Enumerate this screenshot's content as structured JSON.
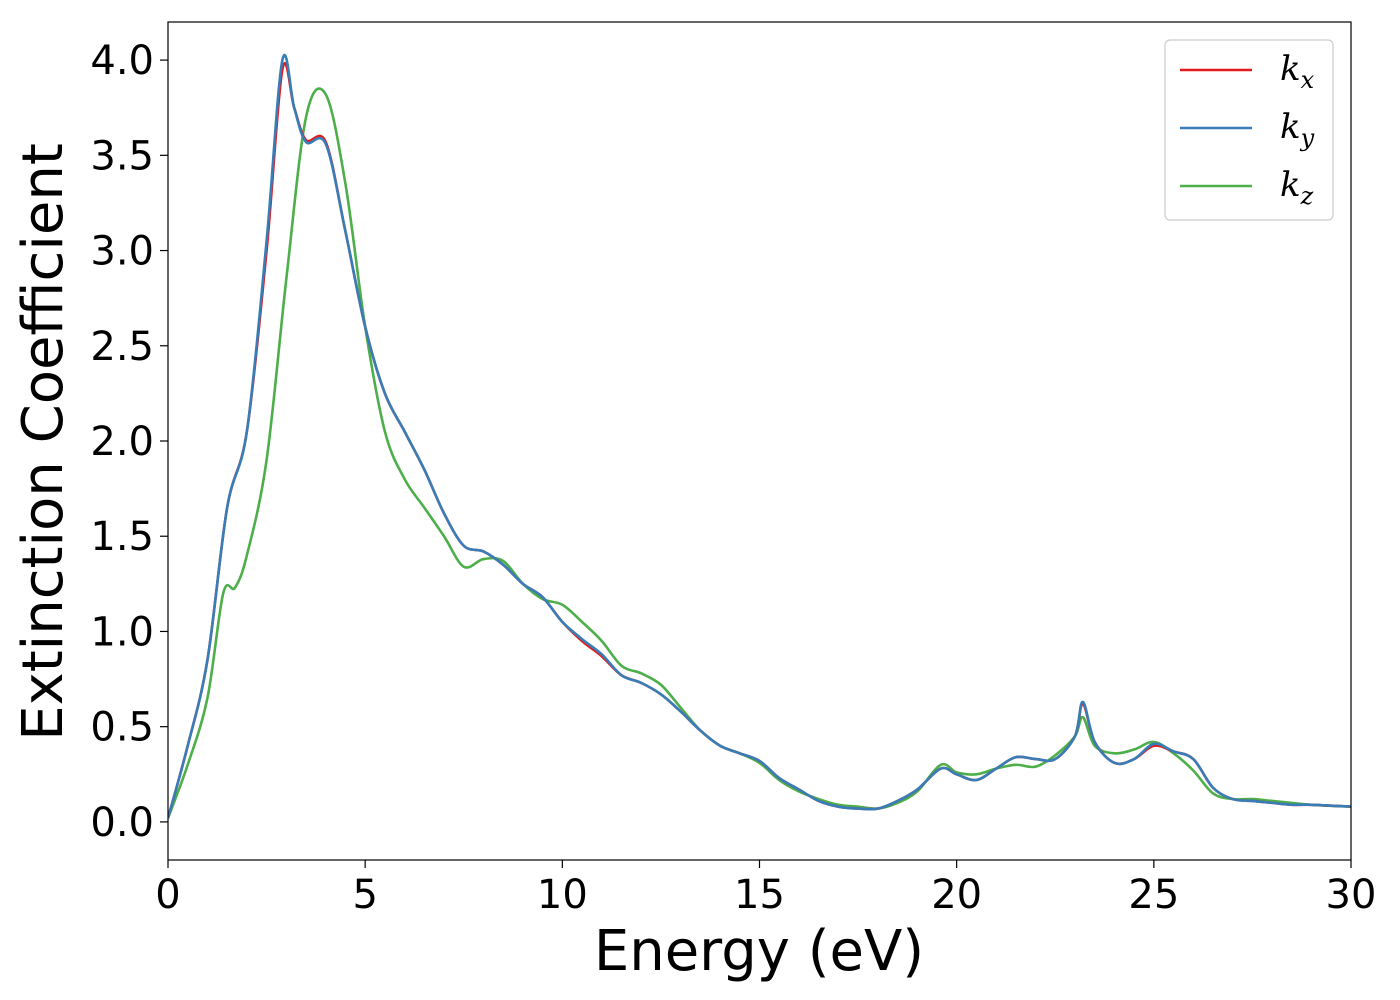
{
  "chart_data": {
    "type": "line",
    "title": "",
    "xlabel": "Energy (eV)",
    "ylabel": "Extinction Coefficient",
    "xlim": [
      0,
      30
    ],
    "ylim": [
      -0.2,
      4.2
    ],
    "xticks": [
      0,
      5,
      10,
      15,
      20,
      25,
      30
    ],
    "xtick_labels": [
      "0",
      "5",
      "10",
      "15",
      "20",
      "25",
      "30"
    ],
    "yticks": [
      0.0,
      0.5,
      1.0,
      1.5,
      2.0,
      2.5,
      3.0,
      3.5,
      4.0
    ],
    "ytick_labels": [
      "0.0",
      "0.5",
      "1.0",
      "1.5",
      "2.0",
      "2.5",
      "3.0",
      "3.5",
      "4.0"
    ],
    "grid": false,
    "legend_position": "top-right",
    "series": [
      {
        "name": "k",
        "subscript": "x",
        "color": "#e41a1c",
        "points": [
          [
            0,
            0.02
          ],
          [
            0.5,
            0.4
          ],
          [
            1,
            0.85
          ],
          [
            1.5,
            1.65
          ],
          [
            2,
            2.05
          ],
          [
            2.5,
            3.0
          ],
          [
            2.9,
            3.95
          ],
          [
            3.2,
            3.75
          ],
          [
            3.5,
            3.58
          ],
          [
            4,
            3.57
          ],
          [
            4.5,
            3.1
          ],
          [
            5,
            2.6
          ],
          [
            5.5,
            2.25
          ],
          [
            6,
            2.05
          ],
          [
            6.5,
            1.85
          ],
          [
            7,
            1.62
          ],
          [
            7.5,
            1.45
          ],
          [
            8,
            1.42
          ],
          [
            8.5,
            1.35
          ],
          [
            9,
            1.25
          ],
          [
            9.5,
            1.18
          ],
          [
            10,
            1.05
          ],
          [
            10.5,
            0.95
          ],
          [
            11,
            0.87
          ],
          [
            11.5,
            0.77
          ],
          [
            12,
            0.73
          ],
          [
            12.5,
            0.67
          ],
          [
            13,
            0.58
          ],
          [
            13.5,
            0.48
          ],
          [
            14,
            0.4
          ],
          [
            14.5,
            0.36
          ],
          [
            15,
            0.32
          ],
          [
            15.5,
            0.23
          ],
          [
            16,
            0.17
          ],
          [
            16.5,
            0.11
          ],
          [
            17,
            0.08
          ],
          [
            17.5,
            0.07
          ],
          [
            18,
            0.07
          ],
          [
            18.5,
            0.11
          ],
          [
            19,
            0.17
          ],
          [
            19.6,
            0.28
          ],
          [
            20,
            0.25
          ],
          [
            20.5,
            0.22
          ],
          [
            21,
            0.28
          ],
          [
            21.5,
            0.34
          ],
          [
            22,
            0.33
          ],
          [
            22.5,
            0.33
          ],
          [
            23,
            0.45
          ],
          [
            23.2,
            0.62
          ],
          [
            23.5,
            0.42
          ],
          [
            24,
            0.31
          ],
          [
            24.5,
            0.33
          ],
          [
            25,
            0.4
          ],
          [
            25.5,
            0.37
          ],
          [
            26,
            0.33
          ],
          [
            26.5,
            0.18
          ],
          [
            27,
            0.12
          ],
          [
            27.5,
            0.11
          ],
          [
            28,
            0.1
          ],
          [
            28.5,
            0.09
          ],
          [
            29,
            0.09
          ],
          [
            30,
            0.08
          ]
        ]
      },
      {
        "name": "k",
        "subscript": "y",
        "color": "#377eb8",
        "points": [
          [
            0,
            0.02
          ],
          [
            0.5,
            0.4
          ],
          [
            1,
            0.85
          ],
          [
            1.5,
            1.65
          ],
          [
            2,
            2.05
          ],
          [
            2.5,
            3.05
          ],
          [
            2.9,
            4.0
          ],
          [
            3.2,
            3.75
          ],
          [
            3.5,
            3.57
          ],
          [
            4,
            3.56
          ],
          [
            4.5,
            3.1
          ],
          [
            5,
            2.6
          ],
          [
            5.5,
            2.25
          ],
          [
            6,
            2.05
          ],
          [
            6.5,
            1.85
          ],
          [
            7,
            1.62
          ],
          [
            7.5,
            1.45
          ],
          [
            8,
            1.42
          ],
          [
            8.5,
            1.35
          ],
          [
            9,
            1.25
          ],
          [
            9.5,
            1.18
          ],
          [
            10,
            1.05
          ],
          [
            10.5,
            0.96
          ],
          [
            11,
            0.88
          ],
          [
            11.5,
            0.77
          ],
          [
            12,
            0.73
          ],
          [
            12.5,
            0.67
          ],
          [
            13,
            0.58
          ],
          [
            13.5,
            0.48
          ],
          [
            14,
            0.4
          ],
          [
            14.5,
            0.36
          ],
          [
            15,
            0.32
          ],
          [
            15.5,
            0.23
          ],
          [
            16,
            0.17
          ],
          [
            16.5,
            0.11
          ],
          [
            17,
            0.08
          ],
          [
            17.5,
            0.07
          ],
          [
            18,
            0.07
          ],
          [
            18.5,
            0.11
          ],
          [
            19,
            0.17
          ],
          [
            19.6,
            0.28
          ],
          [
            20,
            0.25
          ],
          [
            20.5,
            0.22
          ],
          [
            21,
            0.28
          ],
          [
            21.5,
            0.34
          ],
          [
            22,
            0.33
          ],
          [
            22.5,
            0.33
          ],
          [
            23,
            0.45
          ],
          [
            23.2,
            0.63
          ],
          [
            23.5,
            0.42
          ],
          [
            24,
            0.31
          ],
          [
            24.5,
            0.33
          ],
          [
            25,
            0.41
          ],
          [
            25.5,
            0.37
          ],
          [
            26,
            0.33
          ],
          [
            26.5,
            0.18
          ],
          [
            27,
            0.12
          ],
          [
            27.5,
            0.11
          ],
          [
            28,
            0.1
          ],
          [
            28.5,
            0.09
          ],
          [
            29,
            0.09
          ],
          [
            30,
            0.08
          ]
        ]
      },
      {
        "name": "k",
        "subscript": "z",
        "color": "#4daf4a",
        "points": [
          [
            0,
            0.02
          ],
          [
            0.5,
            0.3
          ],
          [
            1,
            0.65
          ],
          [
            1.4,
            1.2
          ],
          [
            1.7,
            1.23
          ],
          [
            2,
            1.4
          ],
          [
            2.5,
            1.9
          ],
          [
            3,
            2.85
          ],
          [
            3.5,
            3.7
          ],
          [
            4,
            3.82
          ],
          [
            4.5,
            3.35
          ],
          [
            5,
            2.6
          ],
          [
            5.5,
            2.05
          ],
          [
            6,
            1.8
          ],
          [
            6.5,
            1.65
          ],
          [
            7,
            1.5
          ],
          [
            7.5,
            1.34
          ],
          [
            8,
            1.38
          ],
          [
            8.5,
            1.37
          ],
          [
            9,
            1.25
          ],
          [
            9.5,
            1.17
          ],
          [
            10,
            1.14
          ],
          [
            10.5,
            1.05
          ],
          [
            11,
            0.95
          ],
          [
            11.5,
            0.82
          ],
          [
            12,
            0.78
          ],
          [
            12.5,
            0.72
          ],
          [
            13,
            0.6
          ],
          [
            13.5,
            0.48
          ],
          [
            14,
            0.4
          ],
          [
            14.5,
            0.36
          ],
          [
            15,
            0.31
          ],
          [
            15.5,
            0.22
          ],
          [
            16,
            0.16
          ],
          [
            16.5,
            0.12
          ],
          [
            17,
            0.09
          ],
          [
            17.5,
            0.08
          ],
          [
            18,
            0.07
          ],
          [
            18.5,
            0.1
          ],
          [
            19,
            0.16
          ],
          [
            19.6,
            0.3
          ],
          [
            20,
            0.26
          ],
          [
            20.5,
            0.25
          ],
          [
            21,
            0.28
          ],
          [
            21.5,
            0.3
          ],
          [
            22,
            0.29
          ],
          [
            22.5,
            0.35
          ],
          [
            23,
            0.45
          ],
          [
            23.2,
            0.55
          ],
          [
            23.5,
            0.4
          ],
          [
            24,
            0.36
          ],
          [
            24.5,
            0.38
          ],
          [
            25,
            0.42
          ],
          [
            25.5,
            0.36
          ],
          [
            26,
            0.27
          ],
          [
            26.5,
            0.15
          ],
          [
            27,
            0.12
          ],
          [
            27.5,
            0.12
          ],
          [
            28,
            0.11
          ],
          [
            28.5,
            0.1
          ],
          [
            29,
            0.09
          ],
          [
            30,
            0.08
          ]
        ]
      }
    ]
  }
}
